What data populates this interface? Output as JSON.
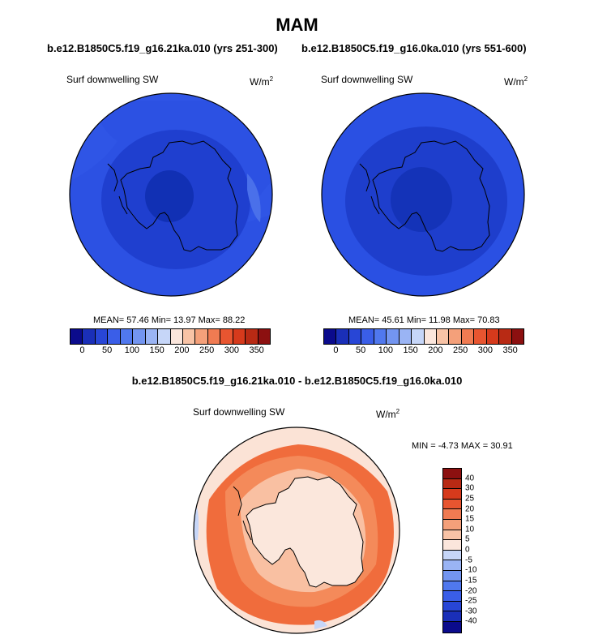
{
  "title": "MAM",
  "panels": [
    {
      "case_title": "b.e12.B1850C5.f19_g16.21ka.010 (yrs 251-300)",
      "variable": "Surf downwelling SW",
      "units_base": "W/m",
      "units_exp": "2",
      "stats": "MEAN=  57.46  Min=  13.97  Max=  88.22",
      "mean": 57.46,
      "min": 13.97,
      "max": 88.22
    },
    {
      "case_title": "b.e12.B1850C5.f19_g16.0ka.010 (yrs 551-600)",
      "variable": "Surf downwelling SW",
      "units_base": "W/m",
      "units_exp": "2",
      "stats": "MEAN=  45.61  Min=  11.98  Max=  70.83",
      "mean": 45.61,
      "min": 11.98,
      "max": 70.83
    }
  ],
  "diff_panel": {
    "case_title": "b.e12.B1850C5.f19_g16.21ka.010 - b.e12.B1850C5.f19_g16.0ka.010",
    "variable": "Surf downwelling SW",
    "units_base": "W/m",
    "units_exp": "2",
    "stats": "MIN =  -4.73 MAX =  30.91",
    "min": -4.73,
    "max": 30.91
  },
  "colorbar_top": {
    "colors": [
      "#0b0b8c",
      "#1a2fb8",
      "#2846d6",
      "#3a5ee8",
      "#5078ee",
      "#7395f0",
      "#9ab4f4",
      "#c6d6f8",
      "#fbe6dc",
      "#f8c3a6",
      "#f4a07a",
      "#f07b52",
      "#e85530",
      "#d63a1c",
      "#b82a14",
      "#8c1010"
    ],
    "labels": [
      "0",
      "50",
      "100",
      "150",
      "200",
      "250",
      "300",
      "350"
    ]
  },
  "colorbar_diff": {
    "colors": [
      "#8c1010",
      "#b82a14",
      "#d63a1c",
      "#e85530",
      "#f07b52",
      "#f4a07a",
      "#f8c3a6",
      "#fbe6dc",
      "#c6d6f8",
      "#9ab4f4",
      "#7395f0",
      "#5078ee",
      "#3a5ee8",
      "#2846d6",
      "#1a2fb8",
      "#0b0b8c"
    ],
    "labels": [
      "40",
      "30",
      "25",
      "20",
      "15",
      "10",
      "5",
      "0",
      "-5",
      "-10",
      "-15",
      "-20",
      "-25",
      "-30",
      "-40"
    ]
  },
  "map_fills": {
    "ocean_outer_a": "#2f55e6",
    "ocean_inner_a": "#1f3fcf",
    "pole_a": "#1130b4",
    "ocean_outer_b": "#2a50e3",
    "ocean_inner_b": "#1e3ecc",
    "pole_b": "#1433b8",
    "diff_outer": "#f06c3c",
    "diff_ring": "#f9c0a2",
    "diff_land": "#fbe7dc"
  }
}
